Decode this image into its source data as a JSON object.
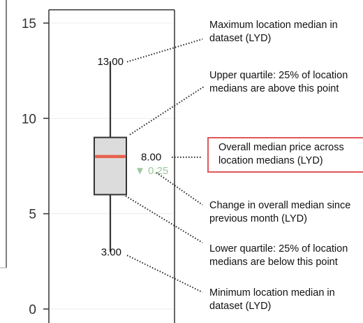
{
  "chart_data": {
    "type": "box",
    "title": "",
    "xlabel": "",
    "ylabel": "",
    "ylim": [
      0,
      15
    ],
    "yticks": [
      0,
      5,
      10,
      15
    ],
    "grid": true,
    "stats": {
      "min": 3.0,
      "q1": 6.0,
      "median": 8.0,
      "q3": 9.0,
      "max": 13.0
    },
    "labels": {
      "max": "13.00",
      "median": "8.00",
      "min": "3.00"
    },
    "median_change": {
      "value": 0.25,
      "direction": "down",
      "label": "0.25",
      "arrow": "▼"
    },
    "colors": {
      "median_line": "#e8604c",
      "box_fill": "#dcdcdc",
      "change": "#9cc89c",
      "highlight_border": "#e0575b"
    }
  },
  "annotations": {
    "max": [
      "Maximum location median in",
      "dataset (LYD)"
    ],
    "q3": [
      "Upper quartile: 25% of location",
      "medians are above this point"
    ],
    "median": [
      "Overall median price across",
      "location medians (LYD)"
    ],
    "change": [
      "Change in overall median since",
      "previous month (LYD)"
    ],
    "q1": [
      "Lower quartile: 25% of location",
      "medians are below this point"
    ],
    "min": [
      "Minimum location median in",
      "dataset (LYD)"
    ]
  }
}
